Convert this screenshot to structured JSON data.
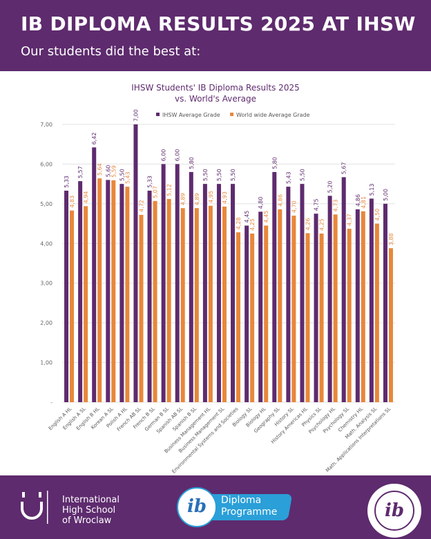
{
  "header": {
    "title": "IB DIPLOMA RESULTS 2025 AT IHSW",
    "subtitle": "Our students did the best at:"
  },
  "footer": {
    "school_lines": [
      "International",
      "High School",
      "of Wroclaw"
    ],
    "ib_badge_lines": [
      "Diploma",
      "Programme"
    ],
    "ib_logo": "ib"
  },
  "colors": {
    "header": "#5e2b6e",
    "ihsw": "#5e2b6e",
    "world": "#e8873a"
  },
  "chart_data": {
    "type": "bar",
    "title": "IHSW Students' IB Diploma Results 2025",
    "subtitle": "vs. World's Average",
    "ylim": [
      0,
      7
    ],
    "yticks": [
      "-",
      "1,00",
      "2,00",
      "3,00",
      "4,00",
      "5,00",
      "6,00",
      "7,00"
    ],
    "grid": true,
    "legend": "top-right",
    "categories": [
      "English A HL",
      "English A SL",
      "English B HL",
      "Korean A SL",
      "Polish A HL",
      "French AB SL",
      "French B SL",
      "German B SL",
      "Spanish AB SL",
      "Spanish B SL",
      "Business Management HL",
      "Business Management SL",
      "Environmental Systems and Societies",
      "Biology SL",
      "Biology HL",
      "Geography SL",
      "History SL",
      "History Americas HL",
      "Physics SL",
      "Psychology HL",
      "Psychology SL",
      "Chemistry HL",
      "Math. Analysis SL",
      "Math. Applications Interpretations SL"
    ],
    "series": [
      {
        "name": "IHSW Average Grade",
        "values": [
          5.33,
          5.57,
          6.42,
          5.6,
          5.5,
          7.0,
          5.33,
          6.0,
          6.0,
          5.8,
          5.5,
          5.5,
          5.5,
          4.45,
          4.8,
          5.8,
          5.43,
          5.5,
          4.75,
          5.2,
          5.67,
          4.86,
          5.13,
          5.0
        ]
      },
      {
        "name": "World wide Average Grade",
        "values": [
          4.83,
          4.94,
          5.64,
          5.59,
          5.43,
          4.72,
          5.07,
          5.12,
          4.89,
          4.89,
          4.95,
          4.93,
          4.28,
          4.25,
          4.45,
          4.86,
          4.7,
          4.26,
          4.25,
          4.73,
          4.37,
          4.81,
          4.5,
          3.88
        ]
      }
    ]
  }
}
